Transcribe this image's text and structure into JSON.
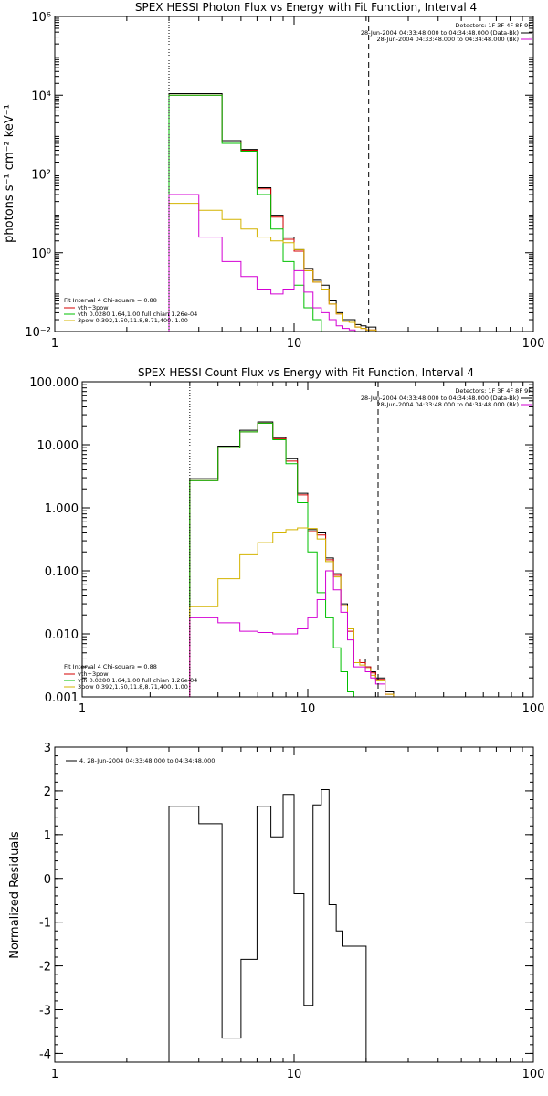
{
  "chart_data": [
    {
      "type": "line",
      "step": true,
      "title": "SPEX HESSI Photon Flux vs Energy with Fit Function, Interval 4",
      "ylabel": "photons s⁻¹ cm⁻² keV⁻¹",
      "xlabel": "",
      "xscale": "log",
      "yscale": "log",
      "xlim": [
        1,
        100
      ],
      "ylim": [
        0.01,
        1000000
      ],
      "x_ticks": [
        1,
        10,
        100
      ],
      "x_tick_labels": [
        "1",
        "10",
        "100"
      ],
      "y_ticks": [
        0.01,
        1,
        100,
        10000,
        1000000
      ],
      "y_tick_labels": [
        "10⁻²",
        "10⁰",
        "10²",
        "10⁴",
        "10⁶"
      ],
      "vlines": [
        {
          "x": 3,
          "style": "dotted"
        },
        {
          "x": 20.5,
          "style": "dashed"
        }
      ],
      "legend_header": "Detectors: 1F 3F 4F 8F 9F",
      "legend_entries": [
        {
          "label": "28-Jun-2004 04:33:48.000 to 04:34:48.000 (Data-Bk)",
          "color": "#000000"
        },
        {
          "label": "28-Jun-2004 04:33:48.000 to 04:34:48.000 (Bk)",
          "color": "#d400d4"
        }
      ],
      "legend_placement": "top-right",
      "fit_header": "Fit Interval 4   Chi-square = 0.88",
      "fit_entries": [
        {
          "label": "vth+3pow",
          "color": "#d40000"
        },
        {
          "label": "vth 0.0280,1.64,1.00  full chian 1.26e-04",
          "color": "#00c000"
        },
        {
          "label": "3pow 0.392,1.50,11.8,8.71,400.,1.00",
          "color": "#d4b400"
        }
      ],
      "fit_placement": "bottom-left",
      "x_edges": [
        3,
        4,
        5,
        6,
        7,
        8,
        9,
        10,
        11,
        12,
        13,
        14,
        15,
        16,
        17,
        18,
        19,
        20,
        22,
        24
      ],
      "series": [
        {
          "name": "Data-Bk",
          "color": "#000000",
          "values": [
            11000,
            11000,
            700,
            420,
            45,
            9,
            2.5,
            1.2,
            0.4,
            0.2,
            0.15,
            0.06,
            0.03,
            0.02,
            0.02,
            0.015,
            0.014,
            0.013,
            0.01
          ]
        },
        {
          "name": "vth+3pow",
          "color": "#d40000",
          "values": [
            10000,
            10000,
            650,
            400,
            42,
            8,
            2.2,
            1.1,
            0.35,
            0.18,
            0.12,
            0.05,
            0.028,
            0.018,
            0.017,
            0.013,
            0.012,
            0.011,
            0.008
          ]
        },
        {
          "name": "vth",
          "color": "#00c000",
          "values": [
            10000,
            10000,
            600,
            380,
            30,
            4,
            0.6,
            0.15,
            0.04,
            0.02,
            0.01,
            0.01,
            0.01,
            0.01,
            0.01,
            0.01,
            0.01,
            0.01,
            0.01
          ]
        },
        {
          "name": "3pow",
          "color": "#d4b400",
          "values": [
            18,
            12,
            7,
            4,
            2.5,
            2,
            1.8,
            1.2,
            0.35,
            0.18,
            0.12,
            0.05,
            0.028,
            0.018,
            0.017,
            0.013,
            0.012,
            0.011,
            0.01
          ]
        },
        {
          "name": "Bk",
          "color": "#d400d4",
          "values": [
            30,
            2.5,
            0.6,
            0.25,
            0.12,
            0.09,
            0.12,
            0.35,
            0.1,
            0.04,
            0.03,
            0.02,
            0.014,
            0.012,
            0.011,
            0.01,
            0.01,
            0.01,
            0.01
          ]
        }
      ]
    },
    {
      "type": "line",
      "step": true,
      "title": "SPEX HESSI Count Flux vs Energy with Fit Function, Interval 4",
      "ylabel": "",
      "xlabel": "",
      "xscale": "log",
      "yscale": "log",
      "xlim": [
        1,
        100
      ],
      "ylim": [
        0.001,
        100
      ],
      "x_ticks": [
        1,
        10,
        100
      ],
      "x_tick_labels": [
        "1",
        "10",
        "100"
      ],
      "y_ticks": [
        0.001,
        0.01,
        0.1,
        1,
        10,
        100
      ],
      "y_tick_labels": [
        "0.001",
        "0.010",
        "0.100",
        "1.000",
        "10.000",
        "100.000"
      ],
      "vlines": [
        {
          "x": 3,
          "style": "dotted"
        },
        {
          "x": 20.5,
          "style": "dashed"
        }
      ],
      "legend_header": "Detectors: 1F 3F 4F 8F 9F",
      "legend_entries": [
        {
          "label": "28-Jun-2004 04:33:48.000 to 04:34:48.000 (Data-Bk)",
          "color": "#000000"
        },
        {
          "label": "28-Jun-2004 04:33:48.000 to 04:34:48.000 (Bk)",
          "color": "#d400d4"
        }
      ],
      "legend_placement": "top-right",
      "fit_header": "Fit Interval 4   Chi-square = 0.88",
      "fit_entries": [
        {
          "label": "vth+3pow",
          "color": "#d40000"
        },
        {
          "label": "vth 0.0280,1.64,1.00  full chian 1.26e-04",
          "color": "#00c000"
        },
        {
          "label": "3pow 0.392,1.50,11.8,8.71,400.,1.00",
          "color": "#d4b400"
        }
      ],
      "fit_placement": "bottom-left",
      "x_edges": [
        3,
        4,
        5,
        6,
        7,
        8,
        9,
        10,
        11,
        12,
        13,
        14,
        15,
        16,
        17,
        18,
        19,
        20,
        22,
        24
      ],
      "series": [
        {
          "name": "Data-Bk",
          "color": "#000000",
          "values": [
            2.9,
            9.5,
            17,
            23,
            13,
            6,
            1.7,
            0.45,
            0.4,
            0.16,
            0.09,
            0.03,
            0.012,
            0.004,
            0.004,
            0.003,
            0.0025,
            0.002,
            0.0012
          ]
        },
        {
          "name": "vth+3pow",
          "color": "#d40000",
          "values": [
            2.7,
            9,
            16,
            22,
            12.5,
            5.5,
            1.6,
            0.42,
            0.37,
            0.15,
            0.085,
            0.028,
            0.011,
            0.004,
            0.0035,
            0.003,
            0.0024,
            0.0019,
            0.0011
          ]
        },
        {
          "name": "vth",
          "color": "#00c000",
          "values": [
            2.7,
            9,
            16,
            22,
            12,
            5,
            1.2,
            0.2,
            0.045,
            0.018,
            0.006,
            0.0025,
            0.0012,
            0.001,
            0.001,
            0.001,
            0.001,
            0.001,
            0.001
          ]
        },
        {
          "name": "3pow",
          "color": "#d4b400",
          "values": [
            0.027,
            0.075,
            0.18,
            0.28,
            0.4,
            0.45,
            0.48,
            0.47,
            0.32,
            0.14,
            0.08,
            0.028,
            0.012,
            0.0035,
            0.0032,
            0.0028,
            0.0022,
            0.0018,
            0.0011
          ]
        },
        {
          "name": "Bk",
          "color": "#d400d4",
          "values": [
            0.018,
            0.015,
            0.011,
            0.0105,
            0.01,
            0.01,
            0.012,
            0.018,
            0.035,
            0.1,
            0.05,
            0.022,
            0.008,
            0.003,
            0.003,
            0.0025,
            0.002,
            0.0016,
            0.001
          ]
        }
      ]
    },
    {
      "type": "line",
      "step": true,
      "title": "",
      "ylabel": "Normalized Residuals",
      "xlabel": "",
      "xscale": "log",
      "yscale": "linear",
      "xlim": [
        1,
        100
      ],
      "ylim": [
        -4.2,
        3
      ],
      "x_ticks": [
        1,
        10,
        100
      ],
      "x_tick_labels": [
        "1",
        "10",
        "100"
      ],
      "y_ticks": [
        -4,
        -3,
        -2,
        -1,
        0,
        1,
        2,
        3
      ],
      "y_tick_labels": [
        "-4",
        "-3",
        "-2",
        "-1",
        "0",
        "1",
        "2",
        "3"
      ],
      "legend_entries": [
        {
          "label": "4. 28-Jun-2004 04:33:48.000 to 04:34:48.000",
          "color": "#000000"
        }
      ],
      "legend_placement": "top-left",
      "x_edges": [
        3,
        4,
        5,
        6,
        7,
        8,
        9,
        10,
        11,
        12,
        13,
        14,
        15,
        16,
        17,
        18,
        19,
        20
      ],
      "series": [
        {
          "name": "4",
          "color": "#000000",
          "values": [
            1.65,
            1.25,
            -3.65,
            -1.85,
            1.65,
            0.95,
            1.92,
            -0.35,
            -2.9,
            1.68,
            2.03,
            -0.6,
            -1.2,
            -1.55,
            -1.55,
            -1.55,
            -1.55
          ]
        }
      ]
    }
  ]
}
